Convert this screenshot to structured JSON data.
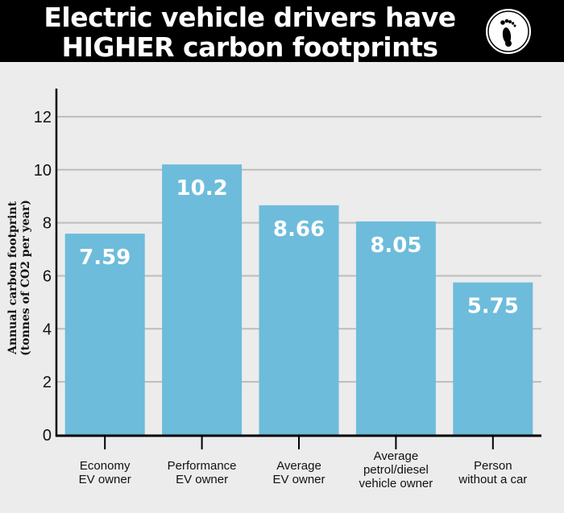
{
  "header": {
    "title_line1": "Electric vehicle drivers have",
    "title_line2": "HIGHER carbon footprints",
    "icon": "footprint-icon"
  },
  "colors": {
    "bar": "#6dbcdb",
    "grid": "#bdbdbd",
    "header_bg": "#000000",
    "plot_bg": "#ececec"
  },
  "chart_data": {
    "type": "bar",
    "title": "Electric vehicle drivers have HIGHER carbon footprints",
    "ylabel": [
      "Annual carbon footprint",
      "(tonnes of CO2 per year)"
    ],
    "xlabel": "",
    "categories": [
      [
        "Economy",
        "EV owner"
      ],
      [
        "Performance",
        "EV owner"
      ],
      [
        "Average",
        "EV owner"
      ],
      [
        "Average",
        "petrol/diesel",
        "vehicle owner"
      ],
      [
        "Person",
        "without a car"
      ]
    ],
    "values": [
      7.59,
      10.2,
      8.66,
      8.05,
      5.75
    ],
    "value_labels": [
      "7.59",
      "10.2",
      "8.66",
      "8.05",
      "5.75"
    ],
    "ylim": [
      0,
      13
    ],
    "yticks": [
      0,
      2,
      4,
      6,
      8,
      10,
      12
    ],
    "grid": true,
    "legend": "none"
  }
}
